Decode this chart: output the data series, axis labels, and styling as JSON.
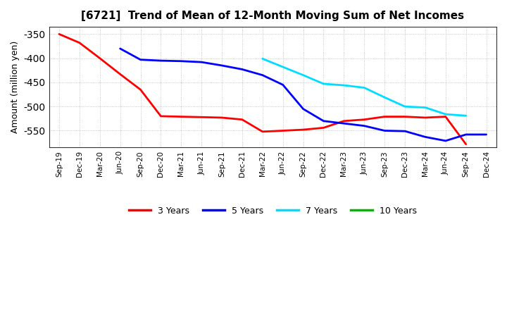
{
  "title": "[6721]  Trend of Mean of 12-Month Moving Sum of Net Incomes",
  "ylabel": "Amount (million yen)",
  "background_color": "#ffffff",
  "grid_color": "#b0b0b0",
  "ylim": [
    -585,
    -335
  ],
  "yticks": [
    -550,
    -500,
    -450,
    -400,
    -350
  ],
  "x_labels": [
    "Sep-19",
    "Dec-19",
    "Mar-20",
    "Jun-20",
    "Sep-20",
    "Dec-20",
    "Mar-21",
    "Jun-21",
    "Sep-21",
    "Dec-21",
    "Mar-22",
    "Jun-22",
    "Sep-22",
    "Dec-22",
    "Mar-23",
    "Jun-23",
    "Sep-23",
    "Dec-23",
    "Mar-24",
    "Jun-24",
    "Sep-24",
    "Dec-24"
  ],
  "series": {
    "3 Years": {
      "color": "#ff0000",
      "linewidth": 2.0,
      "data_x": [
        0,
        1,
        2,
        3,
        4,
        5,
        6,
        7,
        8,
        9,
        10,
        11,
        12,
        13,
        14,
        15,
        16,
        17,
        18,
        19,
        20
      ],
      "data_y": [
        -350,
        -368,
        -400,
        -433,
        -465,
        -520,
        -521,
        -522,
        -523,
        -527,
        -552,
        -550,
        -548,
        -544,
        -530,
        -527,
        -521,
        -521,
        -523,
        -521,
        -578
      ]
    },
    "5 Years": {
      "color": "#0000ff",
      "linewidth": 2.0,
      "data_x": [
        3,
        4,
        5,
        6,
        7,
        8,
        9,
        10,
        11,
        12,
        13,
        14,
        15,
        16,
        17,
        18,
        19,
        20,
        21
      ],
      "data_y": [
        -380,
        -403,
        -405,
        -406,
        -408,
        -415,
        -423,
        -435,
        -455,
        -505,
        -530,
        -535,
        -540,
        -550,
        -551,
        -563,
        -571,
        -558,
        -558
      ]
    },
    "7 Years": {
      "color": "#00ddff",
      "linewidth": 2.0,
      "data_x": [
        10,
        11,
        12,
        13,
        14,
        15,
        16,
        17,
        18,
        19,
        20
      ],
      "data_y": [
        -401,
        -418,
        -435,
        -453,
        -456,
        -461,
        -481,
        -500,
        -502,
        -516,
        -519
      ]
    },
    "10 Years": {
      "color": "#00bb00",
      "linewidth": 2.0,
      "data_x": [],
      "data_y": []
    }
  },
  "legend_entries": [
    "3 Years",
    "5 Years",
    "7 Years",
    "10 Years"
  ],
  "legend_colors": [
    "#ff0000",
    "#0000ff",
    "#00ddff",
    "#00bb00"
  ]
}
